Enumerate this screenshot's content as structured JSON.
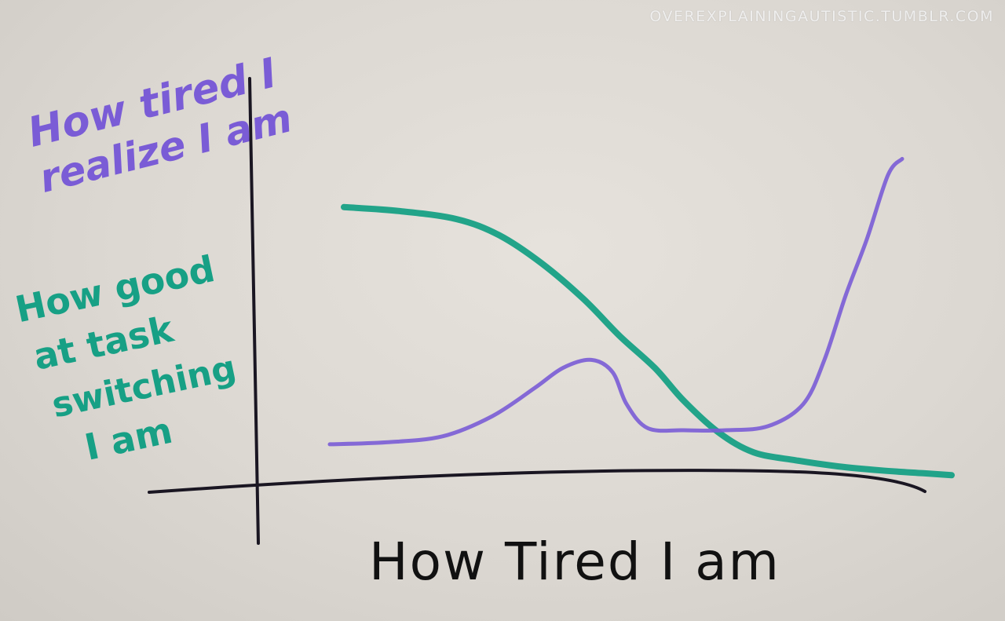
{
  "watermark": "OVEREXPLAININGAUTISTIC.TUMBLR.COM",
  "colors": {
    "axis": "#1a1622",
    "purple": "#7a5cd6",
    "green": "#17a085",
    "xlabel": "#111111"
  },
  "chart_data": {
    "type": "line",
    "xlabel": "How Tired I am",
    "ylabels": [
      {
        "name": "purple",
        "lines": [
          "How tired I",
          "realize I am"
        ]
      },
      {
        "name": "green",
        "lines": [
          "How good",
          "at task",
          "switching",
          "I am"
        ]
      }
    ],
    "xlim": [
      0,
      100
    ],
    "ylim": [
      0,
      100
    ],
    "grid": false,
    "legend": "none",
    "series": [
      {
        "key": "green",
        "x": [
          12,
          20,
          28,
          34,
          40,
          46,
          51,
          56,
          60,
          65,
          70,
          76,
          82,
          88,
          94,
          98
        ],
        "y": [
          68,
          67,
          65,
          61,
          54,
          45,
          36,
          28,
          20,
          12,
          7,
          5,
          3.5,
          2.5,
          1.8,
          1.3
        ]
      },
      {
        "key": "purple",
        "x": [
          10,
          18,
          26,
          33,
          39,
          43,
          47,
          50,
          52,
          55,
          60,
          66,
          72,
          77,
          80,
          83,
          86,
          89,
          91
        ],
        "y": [
          9,
          9.5,
          11,
          16,
          23,
          28,
          30,
          27,
          19,
          13,
          12.5,
          12.5,
          13.5,
          19,
          30,
          46,
          60,
          76,
          80
        ]
      }
    ]
  }
}
